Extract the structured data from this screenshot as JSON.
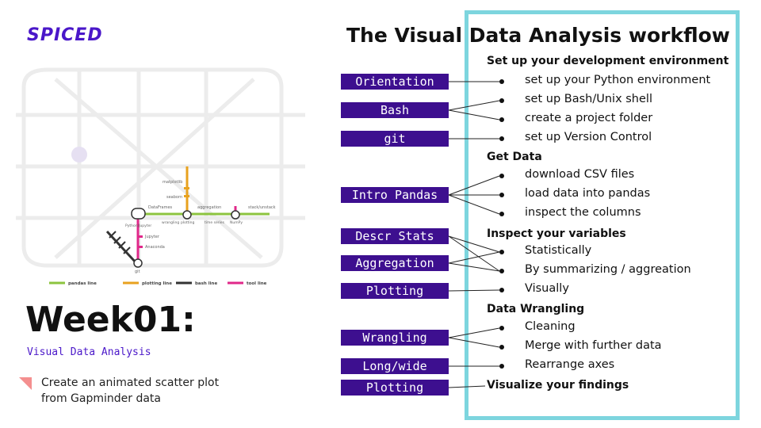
{
  "logo": "SPICED",
  "week_title": "Week01:",
  "subtitle": "Visual Data Analysis",
  "task": "Create an animated scatter plot from Gapminder data",
  "workflow_title": "The Visual Data Analysis workflow",
  "labels": [
    "Orientation",
    "Bash",
    "git",
    "Intro Pandas",
    "Descr Stats",
    "Aggregation",
    "Plotting",
    "Wrangling",
    "Long/wide",
    "Plotting"
  ],
  "headings": [
    "Set up your development environment",
    "Get Data",
    "Inspect your variables",
    "Data Wrangling",
    "Visualize your findings"
  ],
  "items": [
    "set up your Python environment",
    "set up Bash/Unix shell",
    "create a project folder",
    "set up Version Control",
    "download CSV files",
    "load data into pandas",
    "inspect the columns",
    "Statistically",
    "By summarizing / aggreation",
    "Visually",
    "Cleaning",
    "Merge with further data",
    "Rearrange axes"
  ],
  "map": {
    "stations": [
      "Python/Jupyter",
      "DataFrames",
      "aggregation",
      "stack/unstack",
      "matplotlib",
      "seaborn",
      "wrangling",
      "plotting",
      "time series",
      "NumPy",
      "Jupyter",
      "Anaconda",
      "git"
    ],
    "legend": [
      "pandas line",
      "plotting line",
      "bash line",
      "tool line"
    ],
    "line_colors": {
      "pandas": "#8cc43f",
      "plotting": "#e8a21f",
      "bash": "#333333",
      "tool": "#e0288a"
    }
  },
  "colors": {
    "brand": "#4a17c9",
    "label_bg": "#3d0f8f",
    "frame": "#7dd5de",
    "task_icon": "#f48f8f"
  }
}
